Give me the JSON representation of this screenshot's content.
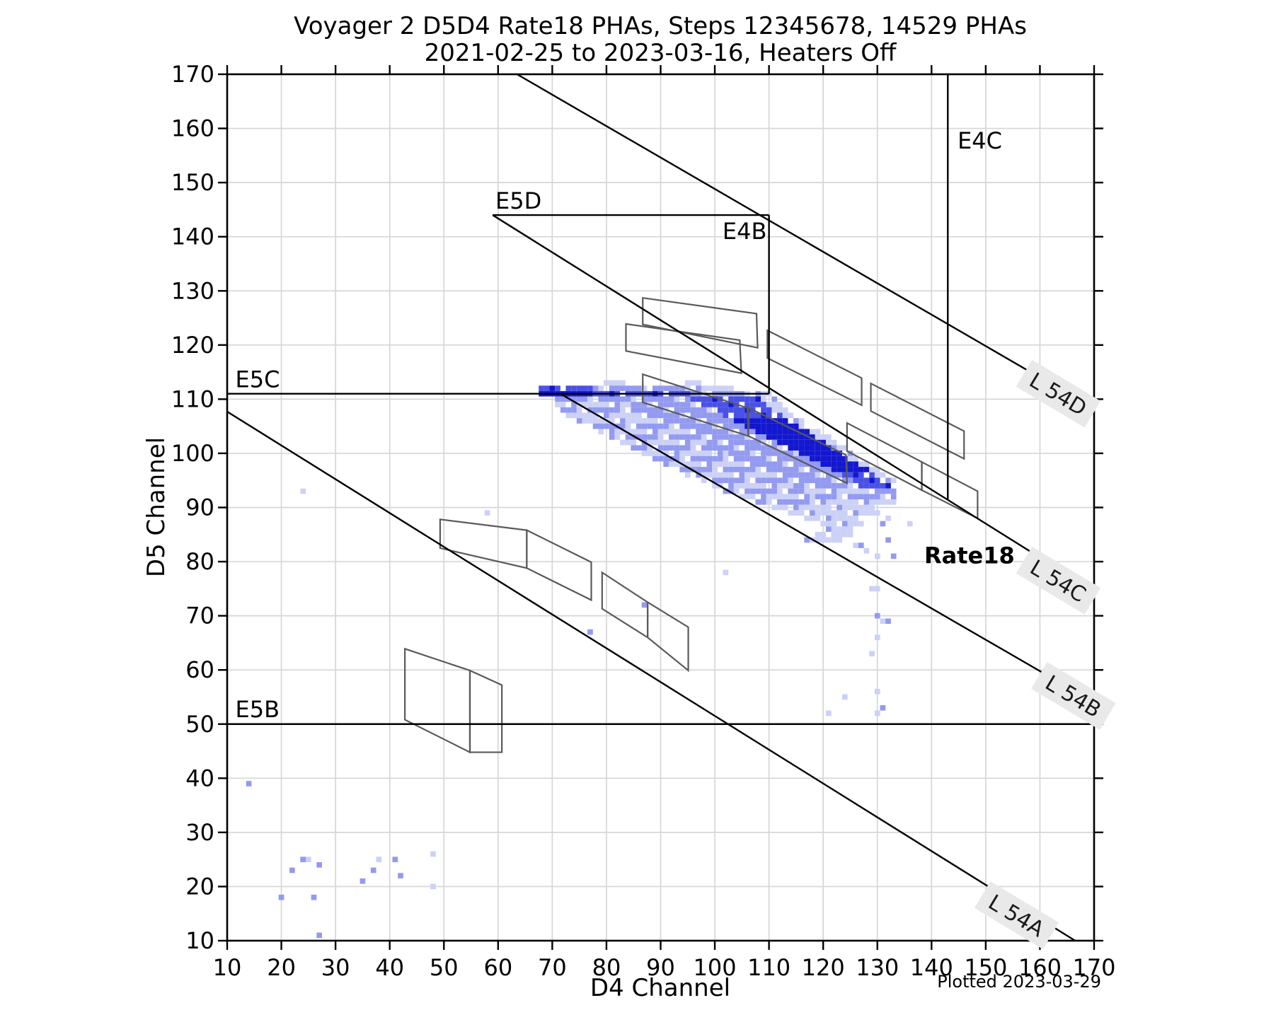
{
  "title": {
    "line1": "Voyager 2 D5D4 Rate18 PHAs, Steps 12345678, 14529 PHAs",
    "line2": "2021-02-25 to 2023-03-16, Heaters Off"
  },
  "footer": {
    "plotted": "Plotted 2023-03-29"
  },
  "axes": {
    "xlabel": "D4 Channel",
    "ylabel": "D5 Channel",
    "xmin": 10,
    "xmax": 170,
    "ymin": 10,
    "ymax": 170,
    "x_ticks": [
      10,
      20,
      30,
      40,
      50,
      60,
      70,
      80,
      90,
      100,
      110,
      120,
      130,
      140,
      150,
      160,
      170
    ],
    "y_ticks": [
      10,
      20,
      30,
      40,
      50,
      60,
      70,
      80,
      90,
      100,
      110,
      120,
      130,
      140,
      150,
      160,
      170
    ],
    "grid": true,
    "grid_color": "#d6d6d6"
  },
  "chart_data": {
    "type": "heatmap",
    "title": "Voyager 2 D5D4 Rate18 PHAs, Steps 12345678, 14529 PHAs",
    "subtitle": "2021-02-25 to 2023-03-16, Heaters Off",
    "xlabel": "D4 Channel",
    "ylabel": "D5 Channel",
    "xlim": [
      10,
      170
    ],
    "ylim": [
      10,
      170
    ],
    "pha_count": 14529,
    "bin_size": 1,
    "density_palette": {
      "1": "#ccd1f6",
      "2": "#939af0",
      "3": "#4a51e5",
      "4": "#1317cf"
    },
    "region_lines": [
      {
        "name": "E5B",
        "x1": 10,
        "y1": 50,
        "x2": 170,
        "y2": 50
      },
      {
        "name": "E5C",
        "x1": 10,
        "y1": 111,
        "x2": 110,
        "y2": 111
      },
      {
        "name": "E5D",
        "x1": 59,
        "y1": 144,
        "x2": 110,
        "y2": 144
      },
      {
        "name": "E4B",
        "x1": 110,
        "y1": 111,
        "x2": 110,
        "y2": 144
      },
      {
        "name": "E4C",
        "x1": 143,
        "y1": 91.4,
        "x2": 143,
        "y2": 170
      },
      {
        "name": "L54A",
        "x1": 10,
        "y1": 107.7,
        "x2": 166.5,
        "y2": 10
      },
      {
        "name": "L54B",
        "x1": 71.5,
        "y1": 111,
        "x2": 170,
        "y2": 54
      },
      {
        "name": "L54C",
        "x1": 59,
        "y1": 144,
        "x2": 170,
        "y2": 74.5
      },
      {
        "name": "L54D",
        "x1": 63.5,
        "y1": 170,
        "x2": 170,
        "y2": 108.2
      }
    ],
    "region_labels": [
      {
        "text": "E5C",
        "x": 11.5,
        "y": 112.2,
        "anchor": "start",
        "bold": false
      },
      {
        "text": "E5B",
        "x": 11.5,
        "y": 51.3,
        "anchor": "start",
        "bold": false
      },
      {
        "text": "E5D",
        "x": 59.5,
        "y": 145.2,
        "anchor": "start",
        "bold": false
      },
      {
        "text": "E4B",
        "x": 105.5,
        "y": 139.6,
        "anchor": "middle",
        "bold": false
      },
      {
        "text": "E4C",
        "x": 144.8,
        "y": 156.3,
        "anchor": "start",
        "bold": false
      },
      {
        "text": "Rate18",
        "x": 147,
        "y": 79.7,
        "anchor": "middle",
        "bold": true
      }
    ],
    "contour_labels": [
      {
        "text": "L 54D",
        "x": 163.4,
        "y": 111.0,
        "angle": 31
      },
      {
        "text": "L 54C",
        "x": 163.4,
        "y": 76.5,
        "angle": 31
      },
      {
        "text": "L 54B",
        "x": 166.2,
        "y": 55.2,
        "angle": 31
      },
      {
        "text": "L 54A",
        "x": 155.7,
        "y": 14.7,
        "angle": 31
      }
    ],
    "step_polygons": [
      {
        "name": "step-box-1",
        "pts": [
          [
            86.7,
            128.7
          ],
          [
            107.7,
            125.8
          ],
          [
            107.9,
            119.5
          ],
          [
            86.7,
            123.8
          ]
        ]
      },
      {
        "name": "step-box-2",
        "pts": [
          [
            83.6,
            123.9
          ],
          [
            104.6,
            120.9
          ],
          [
            104.9,
            114.8
          ],
          [
            83.6,
            118.9
          ]
        ]
      },
      {
        "name": "step-box-3",
        "pts": [
          [
            109.7,
            122.7
          ],
          [
            127.1,
            113.9
          ],
          [
            127.1,
            108.9
          ],
          [
            109.7,
            117.6
          ]
        ]
      },
      {
        "name": "step-box-4",
        "pts": [
          [
            128.8,
            112.9
          ],
          [
            146.0,
            104.1
          ],
          [
            146.0,
            99.0
          ],
          [
            128.8,
            107.8
          ]
        ]
      },
      {
        "name": "step-box-5",
        "pts": [
          [
            86.7,
            114.6
          ],
          [
            106.0,
            108.4
          ],
          [
            106.2,
            103.2
          ],
          [
            86.7,
            109.4
          ]
        ]
      },
      {
        "name": "step-box-6",
        "pts": [
          [
            106.2,
            108.4
          ],
          [
            124.2,
            99.7
          ],
          [
            124.4,
            94.5
          ],
          [
            106.2,
            103.2
          ]
        ]
      },
      {
        "name": "step-box-7",
        "pts": [
          [
            124.4,
            105.6
          ],
          [
            138.2,
            98.4
          ],
          [
            138.2,
            93.2
          ],
          [
            124.4,
            100.4
          ]
        ]
      },
      {
        "name": "step-box-8",
        "pts": [
          [
            138.2,
            98.4
          ],
          [
            148.5,
            93.0
          ],
          [
            148.5,
            88.0
          ],
          [
            138.2,
            93.2
          ]
        ]
      },
      {
        "name": "step-box-9",
        "pts": [
          [
            49.3,
            87.8
          ],
          [
            65.3,
            85.8
          ],
          [
            65.3,
            78.8
          ],
          [
            49.3,
            82.5
          ]
        ]
      },
      {
        "name": "step-box-10",
        "pts": [
          [
            65.3,
            85.8
          ],
          [
            77.2,
            79.9
          ],
          [
            77.2,
            72.9
          ],
          [
            65.3,
            78.8
          ]
        ]
      },
      {
        "name": "step-box-11",
        "pts": [
          [
            79.2,
            78.0
          ],
          [
            87.6,
            72.5
          ],
          [
            87.6,
            66.0
          ],
          [
            79.2,
            71.3
          ]
        ]
      },
      {
        "name": "step-box-12",
        "pts": [
          [
            87.6,
            72.5
          ],
          [
            95.1,
            67.9
          ],
          [
            95.1,
            59.9
          ],
          [
            87.6,
            66.0
          ]
        ]
      },
      {
        "name": "step-box-13",
        "pts": [
          [
            42.8,
            63.9
          ],
          [
            54.8,
            59.9
          ],
          [
            54.8,
            44.8
          ],
          [
            42.8,
            50.8
          ]
        ]
      },
      {
        "name": "step-box-14",
        "pts": [
          [
            54.8,
            59.9
          ],
          [
            60.7,
            57.2
          ],
          [
            60.7,
            44.8
          ],
          [
            54.8,
            44.8
          ]
        ]
      }
    ],
    "cloud_rows": [
      {
        "y": 113,
        "runs": [
          [
            80,
            83,
            1
          ],
          [
            95,
            97,
            1
          ]
        ]
      },
      {
        "y": 112,
        "runs": [
          [
            68,
            77,
            3
          ],
          [
            78,
            94,
            2
          ],
          [
            95,
            104,
            1
          ]
        ]
      },
      {
        "y": 111,
        "runs": [
          [
            68,
            77,
            4
          ],
          [
            78,
            95,
            3
          ],
          [
            96,
            107,
            2
          ],
          [
            108,
            110,
            1
          ]
        ]
      },
      {
        "y": 110,
        "runs": [
          [
            70,
            80,
            2
          ],
          [
            81,
            95,
            2
          ],
          [
            96,
            108,
            3
          ],
          [
            109,
            111,
            1
          ]
        ]
      },
      {
        "y": 109,
        "runs": [
          [
            71,
            84,
            1
          ],
          [
            85,
            97,
            2
          ],
          [
            98,
            109,
            3
          ],
          [
            110,
            112,
            1
          ]
        ]
      },
      {
        "y": 108,
        "runs": [
          [
            72,
            86,
            2
          ],
          [
            87,
            99,
            2
          ],
          [
            100,
            110,
            3
          ],
          [
            111,
            113,
            1
          ]
        ]
      },
      {
        "y": 107,
        "runs": [
          [
            73,
            88,
            1
          ],
          [
            89,
            101,
            2
          ],
          [
            102,
            112,
            3
          ],
          [
            113,
            114,
            1
          ]
        ]
      },
      {
        "y": 106,
        "runs": [
          [
            75,
            90,
            1
          ],
          [
            91,
            103,
            2
          ],
          [
            104,
            113,
            4
          ],
          [
            114,
            116,
            1
          ]
        ]
      },
      {
        "y": 105,
        "runs": [
          [
            77,
            92,
            2
          ],
          [
            93,
            105,
            2
          ],
          [
            106,
            115,
            4
          ],
          [
            116,
            117,
            1
          ]
        ]
      },
      {
        "y": 104,
        "runs": [
          [
            79,
            94,
            1
          ],
          [
            95,
            107,
            2
          ],
          [
            108,
            117,
            4
          ],
          [
            118,
            119,
            1
          ]
        ]
      },
      {
        "y": 103,
        "runs": [
          [
            81,
            96,
            2
          ],
          [
            97,
            109,
            2
          ],
          [
            110,
            118,
            4
          ],
          [
            119,
            121,
            1
          ]
        ]
      },
      {
        "y": 102,
        "runs": [
          [
            83,
            98,
            1
          ],
          [
            99,
            111,
            2
          ],
          [
            112,
            120,
            4
          ],
          [
            121,
            122,
            1
          ]
        ]
      },
      {
        "y": 101,
        "runs": [
          [
            85,
            100,
            2
          ],
          [
            101,
            113,
            2
          ],
          [
            114,
            121,
            4
          ],
          [
            122,
            124,
            1
          ]
        ]
      },
      {
        "y": 100,
        "runs": [
          [
            87,
            102,
            1
          ],
          [
            103,
            115,
            2
          ],
          [
            116,
            123,
            4
          ],
          [
            124,
            125,
            1
          ]
        ]
      },
      {
        "y": 99,
        "runs": [
          [
            89,
            104,
            2
          ],
          [
            105,
            117,
            2
          ],
          [
            118,
            124,
            4
          ],
          [
            125,
            127,
            1
          ]
        ]
      },
      {
        "y": 98,
        "runs": [
          [
            91,
            106,
            1
          ],
          [
            107,
            119,
            2
          ],
          [
            120,
            126,
            4
          ],
          [
            127,
            128,
            1
          ]
        ]
      },
      {
        "y": 97,
        "runs": [
          [
            93,
            108,
            2
          ],
          [
            109,
            121,
            2
          ],
          [
            122,
            128,
            4
          ],
          [
            129,
            130,
            1
          ]
        ]
      },
      {
        "y": 96,
        "runs": [
          [
            95,
            110,
            1
          ],
          [
            111,
            123,
            2
          ],
          [
            124,
            129,
            3
          ],
          [
            130,
            131,
            1
          ]
        ]
      },
      {
        "y": 95,
        "runs": [
          [
            98,
            112,
            2
          ],
          [
            113,
            125,
            2
          ],
          [
            126,
            131,
            3
          ],
          [
            132,
            133,
            1
          ]
        ]
      },
      {
        "y": 94,
        "runs": [
          [
            100,
            114,
            1
          ],
          [
            115,
            126,
            2
          ],
          [
            127,
            132,
            3
          ]
        ]
      },
      {
        "y": 93,
        "runs": [
          [
            102,
            116,
            2
          ],
          [
            117,
            127,
            1
          ],
          [
            128,
            133,
            2
          ]
        ]
      },
      {
        "y": 92,
        "runs": [
          [
            105,
            118,
            1
          ],
          [
            119,
            128,
            2
          ],
          [
            129,
            133,
            2
          ]
        ]
      },
      {
        "y": 91,
        "runs": [
          [
            108,
            120,
            2
          ],
          [
            121,
            129,
            1
          ],
          [
            130,
            133,
            1
          ]
        ]
      },
      {
        "y": 90,
        "runs": [
          [
            111,
            122,
            1
          ],
          [
            123,
            130,
            1
          ]
        ]
      },
      {
        "y": 89,
        "runs": [
          [
            114,
            124,
            1
          ],
          [
            125,
            130,
            1
          ]
        ]
      },
      {
        "y": 88,
        "runs": [
          [
            117,
            126,
            1
          ]
        ]
      },
      {
        "y": 87,
        "runs": [
          [
            120,
            127,
            1
          ]
        ]
      },
      {
        "y": 86,
        "runs": [
          [
            122,
            126,
            1
          ]
        ]
      },
      {
        "y": 85,
        "runs": [
          [
            119,
            125,
            1
          ]
        ]
      },
      {
        "y": 84,
        "runs": [
          [
            117,
            123,
            1
          ]
        ]
      }
    ],
    "outlier_points": [
      [
        14,
        39,
        2
      ],
      [
        20,
        18,
        2
      ],
      [
        22,
        23,
        2
      ],
      [
        24,
        25,
        2
      ],
      [
        25,
        25,
        1
      ],
      [
        26,
        18,
        2
      ],
      [
        27,
        24,
        2
      ],
      [
        27,
        11,
        2
      ],
      [
        35,
        21,
        2
      ],
      [
        37,
        23,
        2
      ],
      [
        38,
        25,
        1
      ],
      [
        41,
        25,
        2
      ],
      [
        42,
        22,
        2
      ],
      [
        48,
        26,
        1
      ],
      [
        48,
        20,
        1
      ],
      [
        24,
        93,
        1
      ],
      [
        58,
        89,
        1
      ],
      [
        77,
        67,
        2
      ],
      [
        87,
        72,
        2
      ],
      [
        102,
        78,
        1
      ],
      [
        121,
        86,
        2
      ],
      [
        122,
        85,
        1
      ],
      [
        125,
        86,
        1
      ],
      [
        126,
        83,
        1
      ],
      [
        127,
        83,
        2
      ],
      [
        128,
        82,
        1
      ],
      [
        130,
        91,
        1
      ],
      [
        131,
        87,
        2
      ],
      [
        132,
        88,
        1
      ],
      [
        136,
        87,
        1
      ],
      [
        132,
        84,
        2
      ],
      [
        130,
        81,
        1
      ],
      [
        133,
        81,
        2
      ],
      [
        129,
        75,
        1
      ],
      [
        130,
        75,
        1
      ],
      [
        130,
        70,
        2
      ],
      [
        131,
        69,
        1
      ],
      [
        132,
        69,
        2
      ],
      [
        129,
        63,
        1
      ],
      [
        130,
        66,
        1
      ],
      [
        124,
        55,
        1
      ],
      [
        130,
        56,
        1
      ],
      [
        121,
        52,
        1
      ],
      [
        131,
        53,
        2
      ],
      [
        130,
        52,
        1
      ]
    ],
    "legend_position": "none"
  }
}
